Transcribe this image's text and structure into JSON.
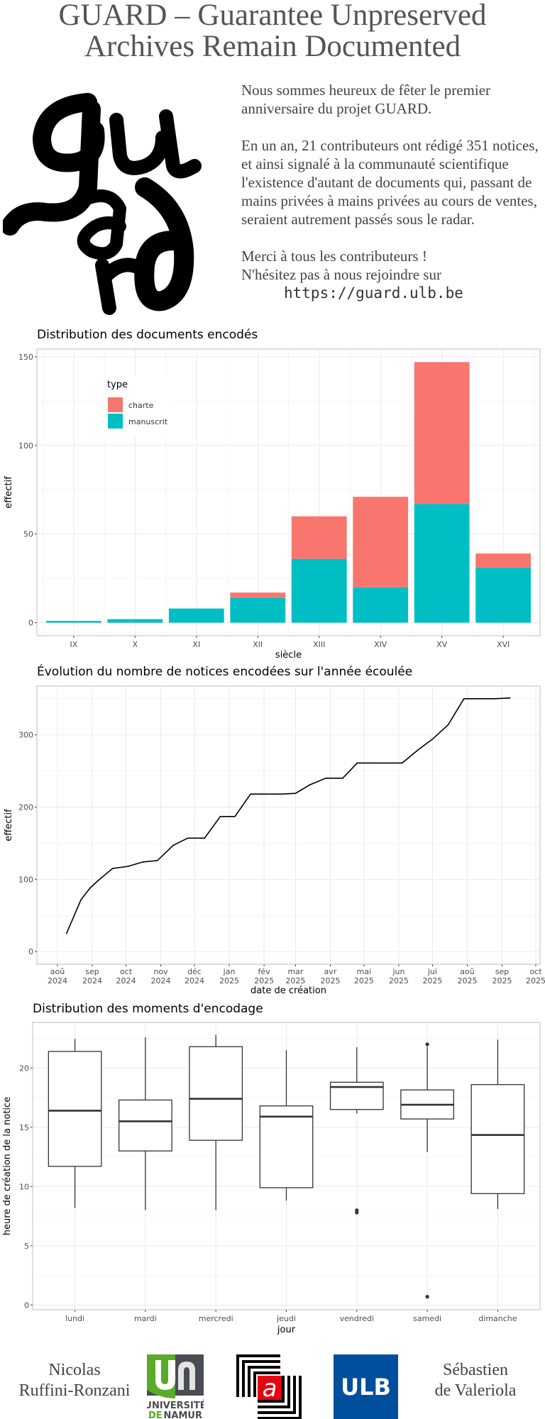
{
  "header": {
    "title_line1": "GUARD – Guarantee Unpreserved",
    "title_line2": "Archives Remain Documented",
    "logo_text": "guard"
  },
  "intro": {
    "p1": "Nous sommes heureux de fêter le premier anniversaire du projet GUARD.",
    "p2": "En un an, 21 contributeurs ont rédigé 351 notices, et ainsi signalé à la communauté scientifique l'existence d'autant de documents qui, passant de mains privées à mains privées au cours de ventes, seraient autrement passés sous le radar.",
    "p3a": "Merci à tous les contributeurs !",
    "p3b": "N'hésitez pas à nous rejoindre sur",
    "url": "https://guard.ulb.be"
  },
  "chart_data": [
    {
      "type": "bar",
      "stacked": true,
      "title": "Distribution des documents encodés",
      "xlabel": "siècle",
      "ylabel": "effectif",
      "categories": [
        "IX",
        "X",
        "XI",
        "XII",
        "XIII",
        "XIV",
        "XV",
        "XVI"
      ],
      "series": [
        {
          "name": "charte",
          "color": "#F8766D",
          "values": [
            0,
            0,
            0,
            3,
            24,
            51,
            80,
            8
          ]
        },
        {
          "name": "manuscrit",
          "color": "#00BFC4",
          "values": [
            1,
            2,
            8,
            14,
            36,
            20,
            67,
            31
          ]
        }
      ],
      "legend_title": "type",
      "legend_position": "top-left inside",
      "ylim": [
        -7.35,
        154.35
      ],
      "yticks": [
        0,
        50,
        100,
        150
      ],
      "grid": true
    },
    {
      "type": "line",
      "title": "Évolution du nombre de notices encodées sur l'année écoulée",
      "xlabel": "date de création",
      "ylabel": "effectif",
      "color": "#000000",
      "points": [
        [
          "2024-08-09",
          25
        ],
        [
          "2024-08-22",
          72
        ],
        [
          "2024-08-30",
          88
        ],
        [
          "2024-09-06",
          98
        ],
        [
          "2024-09-19",
          115
        ],
        [
          "2024-10-03",
          118
        ],
        [
          "2024-10-16",
          124
        ],
        [
          "2024-10-29",
          126
        ],
        [
          "2024-11-12",
          147
        ],
        [
          "2024-11-25",
          157
        ],
        [
          "2024-12-10",
          157
        ],
        [
          "2024-12-24",
          187
        ],
        [
          "2025-01-06",
          187
        ],
        [
          "2025-01-20",
          218
        ],
        [
          "2025-02-17",
          218
        ],
        [
          "2025-03-01",
          219
        ],
        [
          "2025-03-14",
          231
        ],
        [
          "2025-03-28",
          240
        ],
        [
          "2025-04-12",
          240
        ],
        [
          "2025-04-25",
          261
        ],
        [
          "2025-05-09",
          261
        ],
        [
          "2025-06-04",
          261
        ],
        [
          "2025-06-18",
          279
        ],
        [
          "2025-07-01",
          294
        ],
        [
          "2025-07-15",
          314
        ],
        [
          "2025-07-29",
          350
        ],
        [
          "2025-08-25",
          350
        ],
        [
          "2025-09-08",
          351
        ]
      ],
      "xticks": [
        {
          "date": "2024-08-01",
          "month": "aoû",
          "year": "2024"
        },
        {
          "date": "2024-09-01",
          "month": "sep",
          "year": "2024"
        },
        {
          "date": "2024-10-01",
          "month": "oct",
          "year": "2024"
        },
        {
          "date": "2024-11-01",
          "month": "nov",
          "year": "2024"
        },
        {
          "date": "2024-12-01",
          "month": "déc",
          "year": "2024"
        },
        {
          "date": "2025-01-01",
          "month": "jan",
          "year": "2025"
        },
        {
          "date": "2025-02-01",
          "month": "fév",
          "year": "2025"
        },
        {
          "date": "2025-03-01",
          "month": "mar",
          "year": "2025"
        },
        {
          "date": "2025-04-01",
          "month": "avr",
          "year": "2025"
        },
        {
          "date": "2025-05-01",
          "month": "mai",
          "year": "2025"
        },
        {
          "date": "2025-06-01",
          "month": "jun",
          "year": "2025"
        },
        {
          "date": "2025-07-01",
          "month": "jui",
          "year": "2025"
        },
        {
          "date": "2025-08-01",
          "month": "aoû",
          "year": "2025"
        },
        {
          "date": "2025-09-01",
          "month": "sep",
          "year": "2025"
        },
        {
          "date": "2025-10-01",
          "month": "oct",
          "year": "2025"
        }
      ],
      "yticks": [
        0,
        100,
        200,
        300
      ],
      "ylim": [
        -17.5,
        367.5
      ],
      "grid": true
    },
    {
      "type": "boxplot",
      "title": "Distribution des moments d'encodage",
      "xlabel": "jour",
      "ylabel": "heure de création de la notice",
      "yticks": [
        0,
        5,
        10,
        15,
        20
      ],
      "ylim": [
        -0.4,
        23.85
      ],
      "grid": true,
      "boxes": [
        {
          "day": "lundi",
          "lower": 8.2,
          "q1": 11.7,
          "median": 16.4,
          "q3": 21.4,
          "upper": 22.45,
          "outliers": []
        },
        {
          "day": "mardi",
          "lower": 8.0,
          "q1": 13.0,
          "median": 15.5,
          "q3": 17.3,
          "upper": 22.6,
          "outliers": []
        },
        {
          "day": "mercredi",
          "lower": 8.0,
          "q1": 13.9,
          "median": 17.4,
          "q3": 21.8,
          "upper": 22.8,
          "outliers": []
        },
        {
          "day": "jeudi",
          "lower": 8.8,
          "q1": 9.9,
          "median": 15.9,
          "q3": 16.8,
          "upper": 21.5,
          "outliers": []
        },
        {
          "day": "vendredi",
          "lower": 16.15,
          "q1": 16.5,
          "median": 18.4,
          "q3": 18.8,
          "upper": 21.75,
          "outliers": [
            8.0,
            7.8
          ]
        },
        {
          "day": "samedi",
          "lower": 12.9,
          "q1": 15.7,
          "median": 16.9,
          "q3": 18.15,
          "upper": 21.8,
          "outliers": [
            22.0,
            0.7
          ]
        },
        {
          "day": "dimanche",
          "lower": 8.1,
          "q1": 9.4,
          "median": 14.35,
          "q3": 18.6,
          "upper": 22.4,
          "outliers": []
        }
      ]
    }
  ],
  "footer": {
    "author1_line1": "Nicolas",
    "author1_line2": "Ruffini-Ronzani",
    "namur_line1": "UNIVERSITÉ",
    "namur_line2a": "DE",
    "namur_line2b": "NAMUR",
    "middle_logo_letter": "a",
    "ulb": "ULB",
    "author2_line1": "Sébastien",
    "author2_line2": "de Valeriola",
    "colors": {
      "namur_green": "#5aab27",
      "namur_grey": "#4a4c53",
      "ulb_blue": "#004f9f",
      "red": "#e30613"
    }
  }
}
